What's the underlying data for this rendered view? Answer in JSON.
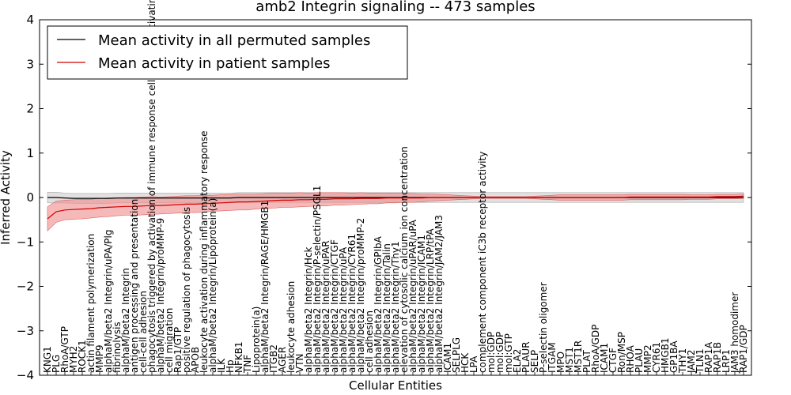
{
  "chart_data": {
    "type": "line",
    "title": "amb2 Integrin signaling -- 473 samples",
    "xlabel": "Cellular Entities",
    "ylabel": "Inferred Activity",
    "ylim": [
      -4,
      4
    ],
    "y_ticks": [
      "−4",
      "−3",
      "−2",
      "−1",
      "0",
      "1",
      "2",
      "3",
      "4"
    ],
    "legend_position": "top-left",
    "grid": false,
    "categories": [
      "KNG1",
      "PLG",
      "RhoA/GTP",
      "MYH2",
      "ROCK1",
      "actin filament polymerization",
      "MMP9",
      "alphaM/beta2 Integrin/uPA/Plg",
      "fibrinolysis",
      "alphaM/beta2 Integrin",
      "antigen processing and presentation",
      "cell-cell adhesion",
      "phagocytosis triggered by activation of immune response cell surface activating receptor",
      "alphaM/beta2 Integrin/proMMP-9",
      "cell migration",
      "Rap1/GTP",
      "positive regulation of phagocytosis",
      "APOB",
      "leukocyte activation during inflammatory response",
      "alphaM/beta2 Integrin/Lipoprotein(a)",
      "ILK",
      "Hp",
      "NFKB1",
      "TNF",
      "Lipoprotein(a)",
      "alphaM/beta2 Integrin/RAGE/HMGB1",
      "ITGB2",
      "AGER",
      "leukocyte adhesion",
      "VTN",
      "alphaM/beta2 Integrin/Hck",
      "alphaM/beta2 Integrin/P-selectin/PSGL1",
      "alphaM/beta2 Integrin/uPAR",
      "alphaM/beta2 Integrin/CTGF",
      "alphaM/beta2 Integrin/uPA",
      "alphaM/beta2 Integrin/CYR61",
      "alphaM/beta2 Integrin/proMMP-2",
      "cell adhesion",
      "alphaM/beta2 Integrin/GPIbA",
      "alphaM/beta2 Integrin/Talin",
      "alphaM/beta2 Integrin/Thy1",
      "elevation of cytosolic calcium ion concentration",
      "alphaM/beta2 Integrin/uPAR/uPA",
      "alphaM/beta2 Integrin/ICAM1",
      "alphaM/beta2 Integrin/LRP/tPA",
      "alphaM/beta2 Integrin/JAM2/JAM3",
      "ICAM1",
      "SELPLG",
      "HCK",
      "LPA",
      "complement component iC3b receptor activity",
      "mol:GDP",
      "mol:GDP",
      "mol:GTP",
      "ELA2",
      "PLAUR",
      "SELP",
      "P-selectin oligomer",
      "ITGAM",
      "MPO",
      "MST1",
      "MST1R",
      "PLAT",
      "RhoA/GDP",
      "ICAM1",
      "CTGF",
      "Ron/MSP",
      "RHOA",
      "PLAU",
      "MMP2",
      "CYR61",
      "HMGB1",
      "GP1BA",
      "THY1",
      "JAM2",
      "TLN1",
      "RAP1A",
      "RAP1B",
      "LRP1",
      "JAM3 homodimer",
      "RAP1/GDP"
    ],
    "series": [
      {
        "name": "Mean activity in all permuted samples",
        "color": "#000000",
        "band_color": "#c8c8c8",
        "values": [
          0.0,
          0.0,
          -0.01,
          -0.02,
          -0.02,
          -0.02,
          -0.02,
          -0.02,
          -0.01,
          -0.01,
          -0.01,
          -0.01,
          -0.01,
          -0.01,
          -0.01,
          -0.01,
          -0.01,
          -0.01,
          -0.01,
          -0.01,
          -0.01,
          -0.01,
          0.0,
          0.0,
          0.0,
          0.0,
          0.0,
          0.0,
          0.0,
          0.0,
          0.0,
          0.0,
          0.0,
          0.0,
          0.0,
          0.0,
          0.0,
          0.0,
          0.0,
          0.0,
          0.0,
          0.0,
          0.0,
          0.0,
          0.0,
          0.0,
          0.0,
          0.0,
          0.0,
          0.0,
          0.0,
          0.0,
          0.0,
          0.0,
          0.0,
          0.0,
          0.0,
          0.0,
          0.0,
          0.0,
          0.0,
          0.0,
          0.0,
          0.0,
          0.0,
          0.0,
          0.0,
          0.0,
          0.0,
          0.0,
          0.0,
          0.0,
          0.0,
          0.0,
          0.0,
          0.0,
          0.0,
          0.0,
          0.0,
          0.0,
          0.0
        ],
        "band": [
          0.12,
          0.12,
          0.11,
          0.11,
          0.11,
          0.11,
          0.11,
          0.11,
          0.11,
          0.11,
          0.11,
          0.11,
          0.11,
          0.11,
          0.11,
          0.11,
          0.11,
          0.11,
          0.11,
          0.11,
          0.11,
          0.11,
          0.11,
          0.11,
          0.11,
          0.11,
          0.11,
          0.11,
          0.11,
          0.11,
          0.11,
          0.11,
          0.11,
          0.11,
          0.11,
          0.11,
          0.11,
          0.11,
          0.11,
          0.11,
          0.11,
          0.11,
          0.11,
          0.11,
          0.11,
          0.11,
          0.11,
          0.11,
          0.11,
          0.11,
          0.11,
          0.11,
          0.11,
          0.11,
          0.11,
          0.11,
          0.11,
          0.11,
          0.11,
          0.11,
          0.11,
          0.11,
          0.11,
          0.11,
          0.11,
          0.11,
          0.11,
          0.11,
          0.11,
          0.11,
          0.11,
          0.11,
          0.11,
          0.11,
          0.11,
          0.11,
          0.11,
          0.11,
          0.11,
          0.11,
          0.11
        ]
      },
      {
        "name": "Mean activity in patient samples",
        "color": "#d00000",
        "band_color": "#f08a8a",
        "values": [
          -0.48,
          -0.32,
          -0.28,
          -0.27,
          -0.26,
          -0.25,
          -0.23,
          -0.22,
          -0.21,
          -0.2,
          -0.2,
          -0.19,
          -0.18,
          -0.18,
          -0.17,
          -0.16,
          -0.15,
          -0.15,
          -0.14,
          -0.13,
          -0.12,
          -0.11,
          -0.1,
          -0.1,
          -0.09,
          -0.08,
          -0.07,
          -0.06,
          -0.06,
          -0.05,
          -0.05,
          -0.04,
          -0.04,
          -0.03,
          -0.03,
          -0.03,
          -0.02,
          -0.02,
          -0.02,
          -0.01,
          -0.01,
          -0.01,
          -0.01,
          -0.01,
          0.0,
          0.0,
          0.0,
          0.0,
          0.0,
          0.0,
          0.0,
          0.0,
          0.0,
          0.0,
          0.0,
          0.0,
          0.0,
          0.0,
          0.0,
          0.0,
          0.0,
          0.0,
          0.0,
          0.0,
          0.0,
          0.0,
          0.0,
          0.01,
          0.01,
          0.01,
          0.01,
          0.01,
          0.01,
          0.01,
          0.01,
          0.01,
          0.01,
          0.02,
          0.02,
          0.02,
          0.03
        ],
        "band": [
          0.27,
          0.24,
          0.22,
          0.22,
          0.22,
          0.21,
          0.21,
          0.21,
          0.2,
          0.2,
          0.2,
          0.2,
          0.2,
          0.19,
          0.19,
          0.19,
          0.19,
          0.19,
          0.19,
          0.18,
          0.18,
          0.18,
          0.18,
          0.18,
          0.17,
          0.17,
          0.17,
          0.16,
          0.16,
          0.16,
          0.15,
          0.15,
          0.15,
          0.14,
          0.14,
          0.13,
          0.13,
          0.12,
          0.12,
          0.11,
          0.11,
          0.1,
          0.1,
          0.09,
          0.08,
          0.07,
          0.06,
          0.05,
          0.04,
          0.03,
          0.02,
          0.02,
          0.02,
          0.02,
          0.02,
          0.02,
          0.03,
          0.04,
          0.05,
          0.06,
          0.06,
          0.06,
          0.06,
          0.06,
          0.06,
          0.06,
          0.06,
          0.06,
          0.06,
          0.06,
          0.06,
          0.06,
          0.06,
          0.06,
          0.05,
          0.05,
          0.05,
          0.05,
          0.05,
          0.05,
          0.05
        ]
      }
    ]
  }
}
